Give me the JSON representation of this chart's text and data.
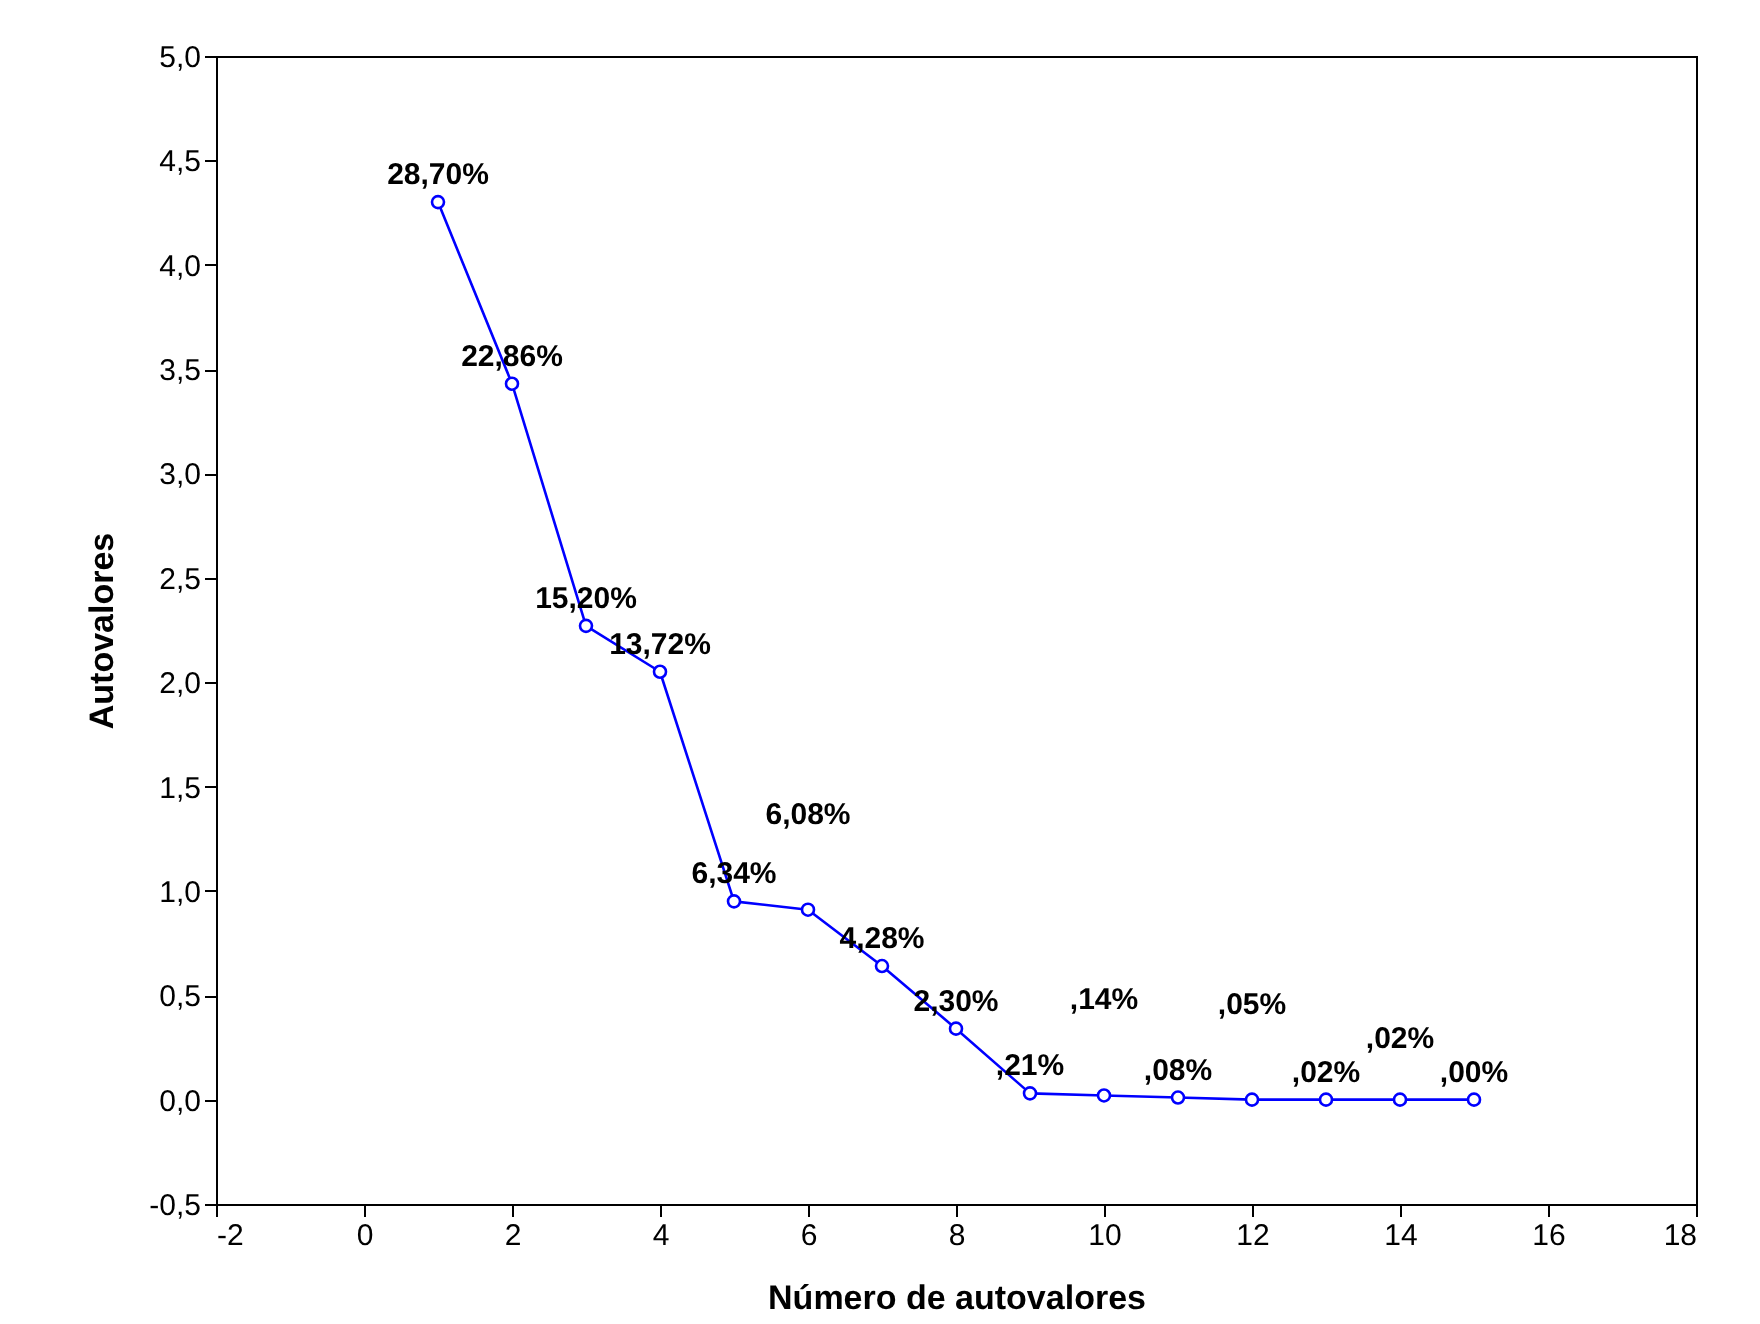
{
  "chart_data": {
    "type": "line",
    "xlabel": "Número de autovalores",
    "ylabel": "Autovalores",
    "x": [
      1,
      2,
      3,
      4,
      5,
      6,
      7,
      8,
      9,
      10,
      11,
      12,
      13,
      14,
      15
    ],
    "series": [
      {
        "color": "#0000ff",
        "values": [
          4.3,
          3.43,
          2.27,
          2.05,
          0.95,
          0.91,
          0.64,
          0.34,
          0.03,
          0.02,
          0.01,
          0.0,
          0.0,
          0.0,
          0.0
        ]
      }
    ],
    "annotations": [
      {
        "text": "28,70%",
        "x": 1,
        "y": 4.3
      },
      {
        "text": "22,86%",
        "x": 2,
        "y": 3.43
      },
      {
        "text": "15,20%",
        "x": 3,
        "y": 2.27
      },
      {
        "text": "13,72%",
        "x": 4,
        "y": 2.05
      },
      {
        "text": "6,34%",
        "x": 5,
        "y": 0.95
      },
      {
        "text": "6,08%",
        "x": 6,
        "y": 0.91
      },
      {
        "text": "4,28%",
        "x": 7,
        "y": 0.64
      },
      {
        "text": "2,30%",
        "x": 8,
        "y": 0.34
      },
      {
        "text": ",21%",
        "x": 9,
        "y": 0.03
      },
      {
        "text": ",14%",
        "x": 10,
        "y": 0.02
      },
      {
        "text": ",08%",
        "x": 11,
        "y": 0.01
      },
      {
        "text": ",05%",
        "x": 12,
        "y": 0.0
      },
      {
        "text": ",02%",
        "x": 13,
        "y": 0.0
      },
      {
        "text": ",02%",
        "x": 14,
        "y": 0.0
      },
      {
        "text": ",00%",
        "x": 15,
        "y": 0.0
      }
    ],
    "xlim": [
      -2,
      18
    ],
    "xticks": [
      -2,
      0,
      2,
      4,
      6,
      8,
      10,
      12,
      14,
      16,
      18
    ],
    "ylim": [
      -0.5,
      5
    ],
    "yticks": [
      {
        "value": -0.5,
        "label": "-0,5"
      },
      {
        "value": 0,
        "label": "0,0"
      },
      {
        "value": 0.5,
        "label": "0,5"
      },
      {
        "value": 1,
        "label": "1,0"
      },
      {
        "value": 1.5,
        "label": "1,5"
      },
      {
        "value": 2,
        "label": "2,0"
      },
      {
        "value": 2.5,
        "label": "2,5"
      },
      {
        "value": 3,
        "label": "3,0"
      },
      {
        "value": 3.5,
        "label": "3,5"
      },
      {
        "value": 4,
        "label": "4,0"
      },
      {
        "value": 4.5,
        "label": "4,5"
      },
      {
        "value": 5,
        "label": "5,0"
      }
    ],
    "grid": false,
    "marker": "circle",
    "line_style": "solid"
  }
}
